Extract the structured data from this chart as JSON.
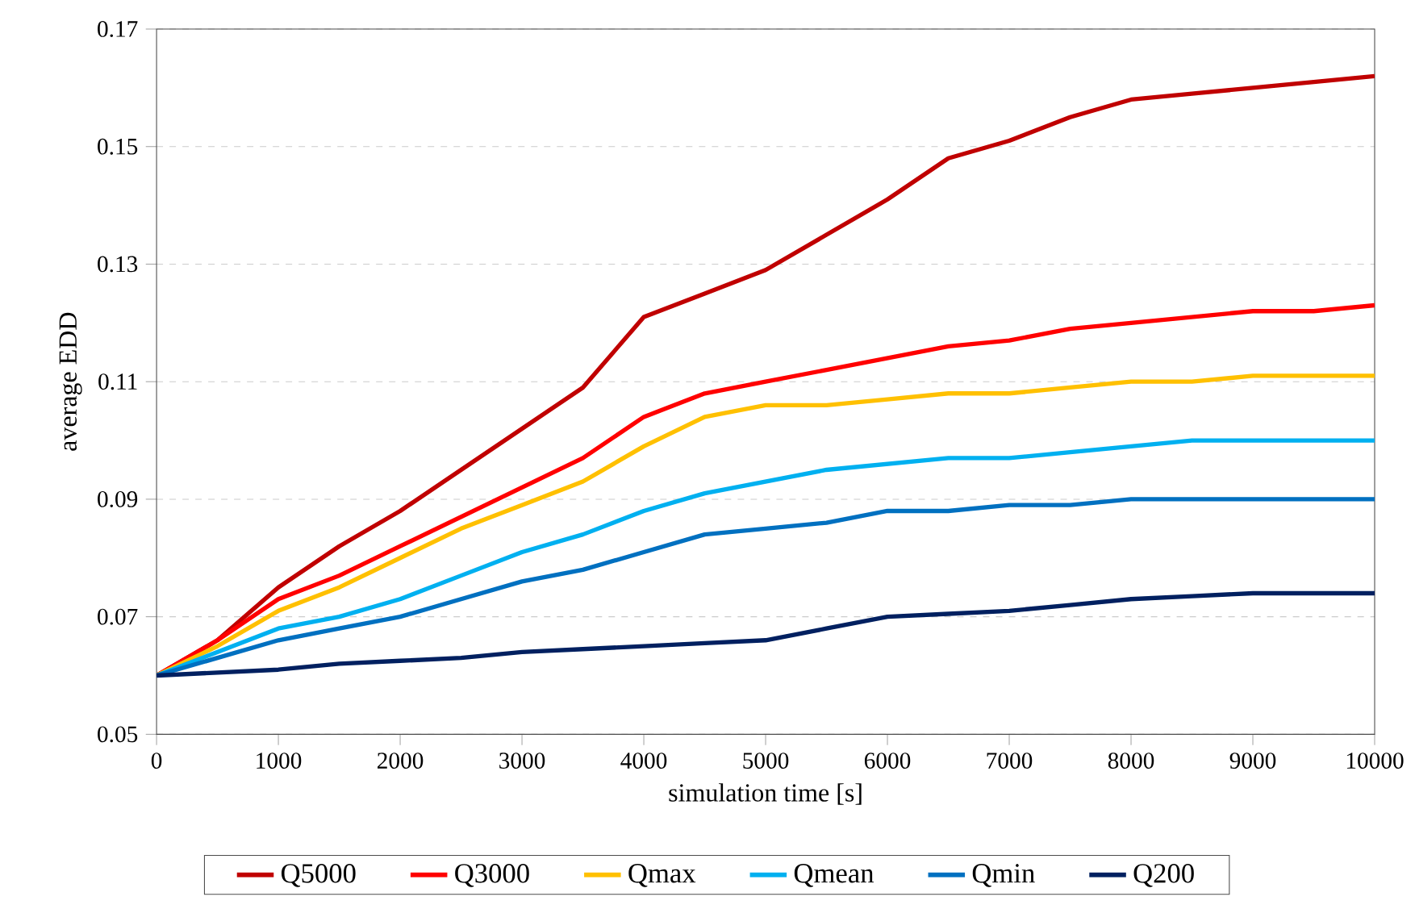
{
  "chart_data": {
    "type": "line",
    "xlabel": "simulation time [s]",
    "ylabel": "average EDD",
    "x": [
      0,
      500,
      1000,
      1500,
      2000,
      2500,
      3000,
      3500,
      4000,
      4500,
      5000,
      5500,
      6000,
      6500,
      7000,
      7500,
      8000,
      8500,
      9000,
      9500,
      10000
    ],
    "series": [
      {
        "name": "Q5000",
        "color": "#c00000",
        "values": [
          0.06,
          0.066,
          0.075,
          0.082,
          0.088,
          0.095,
          0.102,
          0.109,
          0.121,
          0.125,
          0.129,
          0.135,
          0.141,
          0.148,
          0.151,
          0.155,
          0.158,
          0.159,
          0.16,
          0.161,
          0.162
        ]
      },
      {
        "name": "Q3000",
        "color": "#ff0000",
        "values": [
          0.06,
          0.066,
          0.073,
          0.077,
          0.082,
          0.087,
          0.092,
          0.097,
          0.104,
          0.108,
          0.11,
          0.112,
          0.114,
          0.116,
          0.117,
          0.119,
          0.12,
          0.121,
          0.122,
          0.122,
          0.123
        ]
      },
      {
        "name": "Qmax",
        "color": "#ffc000",
        "values": [
          0.06,
          0.065,
          0.071,
          0.075,
          0.08,
          0.085,
          0.089,
          0.093,
          0.099,
          0.104,
          0.106,
          0.106,
          0.107,
          0.108,
          0.108,
          0.109,
          0.11,
          0.11,
          0.111,
          0.111,
          0.111
        ]
      },
      {
        "name": "Qmean",
        "color": "#00b0f0",
        "values": [
          0.06,
          0.064,
          0.068,
          0.07,
          0.073,
          0.077,
          0.081,
          0.084,
          0.088,
          0.091,
          0.093,
          0.095,
          0.096,
          0.097,
          0.097,
          0.098,
          0.099,
          0.1,
          0.1,
          0.1,
          0.1
        ]
      },
      {
        "name": "Qmin",
        "color": "#0070c0",
        "values": [
          0.06,
          0.063,
          0.066,
          0.068,
          0.07,
          0.073,
          0.076,
          0.078,
          0.081,
          0.084,
          0.085,
          0.086,
          0.088,
          0.088,
          0.089,
          0.089,
          0.09,
          0.09,
          0.09,
          0.09,
          0.09
        ]
      },
      {
        "name": "Q200",
        "color": "#002060",
        "values": [
          0.06,
          0.0605,
          0.061,
          0.062,
          0.0625,
          0.063,
          0.064,
          0.0645,
          0.065,
          0.0655,
          0.066,
          0.068,
          0.07,
          0.0705,
          0.071,
          0.072,
          0.073,
          0.0735,
          0.074,
          0.074,
          0.074
        ]
      }
    ],
    "xlim": [
      0,
      10000
    ],
    "ylim": [
      0.05,
      0.17
    ],
    "xticks": [
      0,
      1000,
      2000,
      3000,
      4000,
      5000,
      6000,
      7000,
      8000,
      9000,
      10000
    ],
    "yticks": [
      0.05,
      0.07,
      0.09,
      0.11,
      0.13,
      0.15,
      0.17
    ],
    "grid": "y",
    "legend": "bottom",
    "marker": "none",
    "line_style": "solid"
  }
}
